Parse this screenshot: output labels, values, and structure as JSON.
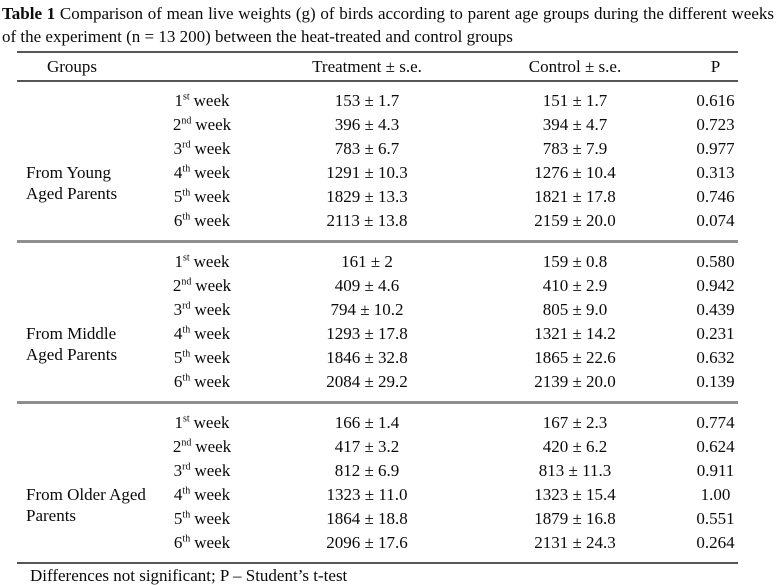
{
  "caption": {
    "label": "Table 1",
    "text": " Comparison of mean live weights (g) of birds according to parent age groups during the different weeks of the experiment (n = 13 200) between the heat-treated and control groups"
  },
  "header": {
    "groups": "Groups",
    "treatment": "Treatment ± s.e.",
    "control": "Control  ± s.e.",
    "p": "P"
  },
  "week_word": "week",
  "groups": [
    {
      "label_lines": [
        "From Young",
        "Aged Parents"
      ],
      "rows": [
        {
          "week_number": "1",
          "ordinal": "st",
          "treatment": "153 ± 1.7",
          "control": "151 ± 1.7",
          "p": "0.616"
        },
        {
          "week_number": "2",
          "ordinal": "nd",
          "treatment": "396 ± 4.3",
          "control": "394 ± 4.7",
          "p": "0.723"
        },
        {
          "week_number": "3",
          "ordinal": "rd",
          "treatment": "783 ± 6.7",
          "control": "783 ± 7.9",
          "p": "0.977"
        },
        {
          "week_number": "4",
          "ordinal": "th",
          "treatment": "1291 ± 10.3",
          "control": "1276 ± 10.4",
          "p": "0.313"
        },
        {
          "week_number": "5",
          "ordinal": "th",
          "treatment": "1829 ± 13.3",
          "control": "1821 ± 17.8",
          "p": "0.746"
        },
        {
          "week_number": "6",
          "ordinal": "th",
          "treatment": "2113 ± 13.8",
          "control": "2159 ± 20.0",
          "p": "0.074"
        }
      ]
    },
    {
      "label_lines": [
        "From Middle",
        "Aged Parents"
      ],
      "rows": [
        {
          "week_number": "1",
          "ordinal": "st",
          "treatment": "161 ± 2",
          "control": "159 ± 0.8",
          "p": "0.580"
        },
        {
          "week_number": "2",
          "ordinal": "nd",
          "treatment": "409 ± 4.6",
          "control": "410 ± 2.9",
          "p": "0.942"
        },
        {
          "week_number": "3",
          "ordinal": "rd",
          "treatment": "794 ± 10.2",
          "control": "805 ± 9.0",
          "p": "0.439"
        },
        {
          "week_number": "4",
          "ordinal": "th",
          "treatment": "1293 ± 17.8",
          "control": "1321 ± 14.2",
          "p": "0.231"
        },
        {
          "week_number": "5",
          "ordinal": "th",
          "treatment": "1846 ± 32.8",
          "control": "1865 ± 22.6",
          "p": "0.632"
        },
        {
          "week_number": "6",
          "ordinal": "th",
          "treatment": "2084 ± 29.2",
          "control": "2139 ± 20.0",
          "p": "0.139"
        }
      ]
    },
    {
      "label_lines": [
        "From Older Aged",
        "Parents"
      ],
      "rows": [
        {
          "week_number": "1",
          "ordinal": "st",
          "treatment": "166 ± 1.4",
          "control": "167 ± 2.3",
          "p": "0.774"
        },
        {
          "week_number": "2",
          "ordinal": "nd",
          "treatment": "417 ± 3.2",
          "control": "420 ± 6.2",
          "p": "0.624"
        },
        {
          "week_number": "3",
          "ordinal": "rd",
          "treatment": "812 ± 6.9",
          "control": "813 ± 11.3",
          "p": "0.911"
        },
        {
          "week_number": "4",
          "ordinal": "th",
          "treatment": "1323 ± 11.0",
          "control": "1323 ± 15.4",
          "p": "1.00"
        },
        {
          "week_number": "5",
          "ordinal": "th",
          "treatment": "1864 ± 18.8",
          "control": "1879 ± 16.8",
          "p": "0.551"
        },
        {
          "week_number": "6",
          "ordinal": "th",
          "treatment": "2096 ± 17.6",
          "control": "2131 ± 24.3",
          "p": "0.264"
        }
      ]
    }
  ],
  "footnote": "Differences not significant; P – Student’s t-test"
}
